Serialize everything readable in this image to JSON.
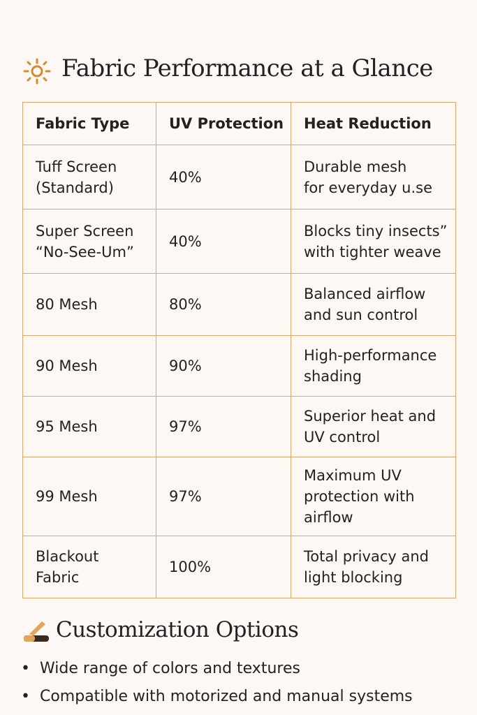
{
  "header": {
    "title": "Fabric Performance at a Glance"
  },
  "table": {
    "columns": [
      "Fabric Type",
      "UV Protection",
      "Heat Reduction"
    ],
    "rows": [
      [
        "Tuff Screen\n(Standard)",
        "40%",
        "Durable mesh\nfor everyday u.se"
      ],
      [
        "Super Screen\n“No-See-Um”",
        "40%",
        "Blocks tiny insects”\nwith tighter weave"
      ],
      [
        "80 Mesh",
        "80%",
        "Balanced airflow\nand sun control"
      ],
      [
        "90 Mesh",
        "90%",
        "High-performance\nshading"
      ],
      [
        "95 Mesh",
        "97%",
        "Superior heat and\nUV control"
      ],
      [
        "99 Mesh",
        "97%",
        "Maximum UV\nprotection with\nairflow"
      ],
      [
        "Blackout\nFabric",
        "100%",
        "Total privacy and\nlight blocking"
      ]
    ]
  },
  "section": {
    "title": "Customization Options",
    "bullets": [
      "Wide range of colors and textures",
      "Compatible with motorized and manual systems"
    ]
  }
}
